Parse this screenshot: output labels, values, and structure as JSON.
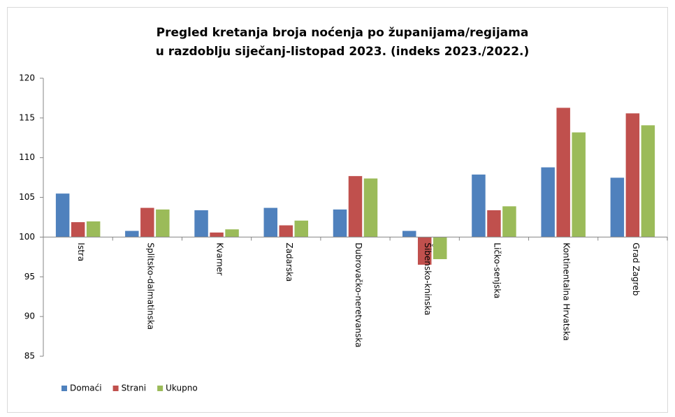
{
  "chart_data": {
    "type": "bar",
    "title": [
      "Pregled kretanja broja noćenja po županijama/regijama",
      "u razdoblju siječanj-listopad 2023. (indeks 2023./2022.)"
    ],
    "categories": [
      "Istra",
      "Splitsko-dalmatinska",
      "Kvarner",
      "Zadarska",
      "Dubrovačko-neretvanska",
      "Šibensko-kninska",
      "Ličko-senjska",
      "Kontinentalna Hrvatska",
      "Grad Zagreb"
    ],
    "series": [
      {
        "name": "Domaći",
        "color": "#4f81bd",
        "values": [
          105.5,
          100.8,
          103.4,
          103.7,
          103.5,
          100.8,
          107.9,
          108.8,
          107.5
        ]
      },
      {
        "name": "Strani",
        "color": "#c0504d",
        "values": [
          101.9,
          103.7,
          100.6,
          101.5,
          107.7,
          96.5,
          103.4,
          116.3,
          115.6
        ]
      },
      {
        "name": "Ukupno",
        "color": "#9bbb59",
        "values": [
          102.0,
          103.5,
          101.0,
          102.1,
          107.4,
          97.2,
          103.9,
          113.2,
          114.1
        ]
      }
    ],
    "ylim": [
      85,
      120
    ],
    "yticks": [
      85,
      90,
      95,
      100,
      105,
      110,
      115,
      120
    ],
    "baseline": 100,
    "legend": "bottom-left"
  }
}
